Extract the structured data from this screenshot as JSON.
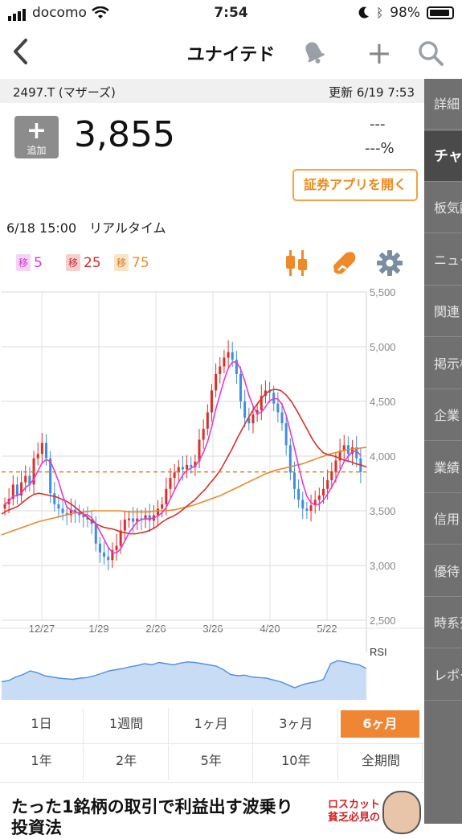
{
  "status_bar": {
    "carrier": "docomo",
    "time": "7:54",
    "battery": "98%"
  },
  "nav": {
    "title": "ユナイテド",
    "back_icon": "chevron-left-icon",
    "bell_icon": "bell-icon",
    "add_icon": "plus-icon",
    "search_icon": "search-icon"
  },
  "subheader": {
    "code": "2497.T (マザーズ)",
    "updated": "更新 6/19 7:53"
  },
  "quote": {
    "add_plus": "+",
    "add_label": "追加",
    "price": "3,855",
    "change": "---",
    "change_pct": "---%",
    "open_app": "証券アプリを開く",
    "realtime": "6/18 15:00　リアルタイム"
  },
  "moving_averages": [
    {
      "tag": "移",
      "value": "5",
      "color": "#d63ad6"
    },
    {
      "tag": "移",
      "value": "25",
      "color": "#d42a2a"
    },
    {
      "tag": "移",
      "value": "75",
      "color": "#ea8a2a"
    }
  ],
  "side_tabs": [
    "詳細",
    "チャート",
    "板気配",
    "ニュース",
    "関連",
    "掲示板",
    "企業",
    "業績",
    "信用",
    "優待",
    "時系列",
    "レポート"
  ],
  "active_side_tab": 1,
  "periods_row1": [
    "1日",
    "1週間",
    "1ヶ月",
    "3ヶ月",
    "6ヶ月"
  ],
  "periods_row2": [
    "1年",
    "2年",
    "5年",
    "10年",
    "全期間"
  ],
  "selected_period": "6ヶ月",
  "banner": {
    "line1": "たった1銘柄の取引で利益出す波乗り",
    "line2": "投資法",
    "ad_red1": "ロスカット",
    "ad_red2": "貧乏必見の"
  },
  "chart_data": {
    "type": "line",
    "y_axis": {
      "min": 2500,
      "max": 5500,
      "ticks": [
        "5,500",
        "5,000",
        "4,500",
        "4,000",
        "3,500",
        "3,000",
        "2,500"
      ]
    },
    "x_ticks": [
      "12/27",
      "1/29",
      "2/26",
      "3/26",
      "4/20",
      "5/22"
    ],
    "current_price_line": 3855,
    "rsi_label": "RSI",
    "colors": {
      "up": "#d9302b",
      "down": "#3f8de0",
      "ma5": "#e23ad7",
      "ma25": "#d9302b",
      "ma75": "#ea8a2a",
      "rsi_fill": "#c8dcf6",
      "rsi_line": "#4f8fe0"
    },
    "close": [
      3560,
      3610,
      3740,
      3640,
      3760,
      3820,
      3740,
      3980,
      4020,
      4120,
      3980,
      3660,
      3560,
      3520,
      3480,
      3460,
      3510,
      3480,
      3460,
      3440,
      3420,
      3380,
      3200,
      3120,
      3080,
      3050,
      3140,
      3180,
      3320,
      3420,
      3430,
      3400,
      3430,
      3420,
      3460,
      3410,
      3460,
      3520,
      3560,
      3700,
      3800,
      3850,
      3900,
      3880,
      3920,
      3900,
      3950,
      4150,
      4250,
      4400,
      4600,
      4750,
      4820,
      4900,
      4950,
      4880,
      4750,
      4500,
      4350,
      4300,
      4380,
      4420,
      4550,
      4600,
      4580,
      4480,
      4400,
      4300,
      4100,
      3850,
      3700,
      3600,
      3520,
      3500,
      3550,
      3600,
      3640,
      3700,
      3780,
      3860,
      3960,
      4050,
      4100,
      4020,
      4080,
      3980,
      3855
    ],
    "ma25": [
      3470,
      3500,
      3520,
      3540,
      3580,
      3620,
      3650,
      3660,
      3650,
      3640,
      3630,
      3610,
      3590,
      3560,
      3520,
      3480,
      3440,
      3400,
      3370,
      3350,
      3340,
      3330,
      3310,
      3300,
      3290,
      3290,
      3300,
      3310,
      3330,
      3360,
      3400,
      3430,
      3450,
      3480,
      3520,
      3560,
      3600,
      3650,
      3700,
      3760,
      3820,
      3890,
      3980,
      4070,
      4170,
      4260,
      4350,
      4430,
      4500,
      4560,
      4600,
      4610,
      4600,
      4560,
      4500,
      4420,
      4330,
      4240,
      4150,
      4080,
      4030,
      4010,
      4000,
      3980,
      3960,
      3950,
      3930,
      3920,
      3900
    ],
    "ma75": [
      3280,
      3310,
      3340,
      3370,
      3400,
      3420,
      3440,
      3460,
      3480,
      3490,
      3500,
      3500,
      3500,
      3500,
      3490,
      3490,
      3490,
      3500,
      3500,
      3510,
      3530,
      3550,
      3580,
      3610,
      3640,
      3680,
      3720,
      3760,
      3800,
      3840,
      3870,
      3890,
      3910,
      3930,
      3960,
      3990,
      4020,
      4040,
      4060,
      4070,
      4080
    ],
    "rsi": [
      30,
      32,
      38,
      42,
      48,
      45,
      40,
      38,
      36,
      35,
      34,
      36,
      37,
      40,
      44,
      48,
      50,
      52,
      55,
      57,
      60,
      58,
      62,
      60,
      58,
      61,
      63,
      62,
      60,
      58,
      56,
      50,
      42,
      40,
      41,
      38,
      37,
      36,
      33,
      30,
      25,
      20,
      25,
      28,
      30,
      34,
      60,
      65,
      63,
      60,
      58,
      52
    ]
  }
}
